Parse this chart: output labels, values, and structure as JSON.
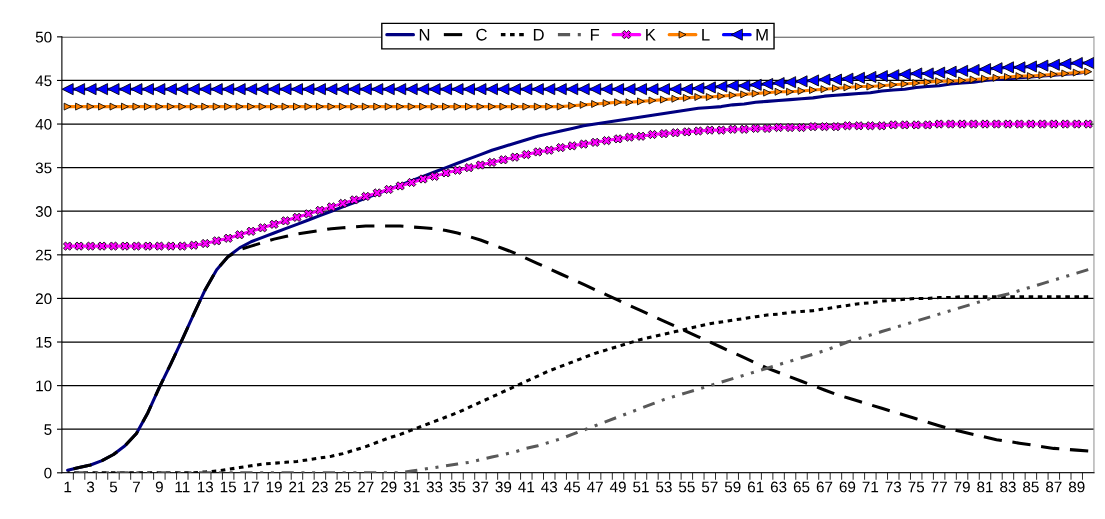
{
  "chart_data": {
    "type": "line",
    "categories": [
      "1",
      null,
      "3",
      null,
      "5",
      null,
      "7",
      null,
      "9",
      null,
      "11",
      null,
      "13",
      null,
      "15",
      null,
      "17",
      null,
      "19",
      null,
      "21",
      null,
      "23",
      null,
      "25",
      null,
      "27",
      null,
      "29",
      null,
      "31",
      null,
      "33",
      null,
      "35",
      null,
      "37",
      null,
      "39",
      null,
      "41",
      null,
      "43",
      null,
      "45",
      null,
      "47",
      null,
      "49",
      null,
      "51",
      null,
      "53",
      null,
      "55",
      null,
      "57",
      null,
      "59",
      null,
      "61",
      null,
      "63",
      null,
      "65",
      null,
      "67",
      null,
      "69",
      null,
      "71",
      null,
      "73",
      null,
      "75",
      null,
      "77",
      null,
      "79",
      null,
      "81",
      null,
      "83",
      null,
      "85",
      null,
      "87",
      null,
      "89",
      null
    ],
    "series": [
      {
        "name": "N",
        "color": "#000080",
        "line_style": "solid",
        "marker": "none",
        "values": [
          0.3,
          0.6,
          0.9,
          1.4,
          2.1,
          3.1,
          4.5,
          6.9,
          9.8,
          12.5,
          15.3,
          18.2,
          21.0,
          23.3,
          24.8,
          25.8,
          26.5,
          27.0,
          27.5,
          28.0,
          28.5,
          29.0,
          29.5,
          30.0,
          30.5,
          31.0,
          31.5,
          32.0,
          32.5,
          33.0,
          33.5,
          34.0,
          34.5,
          35.0,
          35.5,
          36.0,
          36.5,
          37.0,
          37.4,
          37.8,
          38.2,
          38.6,
          38.9,
          39.2,
          39.5,
          39.8,
          40.0,
          40.2,
          40.4,
          40.6,
          40.8,
          41.0,
          41.2,
          41.4,
          41.6,
          41.8,
          41.9,
          42.0,
          42.2,
          42.3,
          42.5,
          42.6,
          42.7,
          42.8,
          42.9,
          43.0,
          43.2,
          43.3,
          43.4,
          43.5,
          43.6,
          43.8,
          43.9,
          44.0,
          44.2,
          44.3,
          44.4,
          44.6,
          44.7,
          44.8,
          45.0,
          45.1,
          45.2,
          45.3,
          45.4,
          45.5,
          45.6,
          45.7,
          45.8,
          46.0
        ]
      },
      {
        "name": "C",
        "color": "#000000",
        "line_style": "dashed",
        "marker": "none",
        "values": [
          0.3,
          0.6,
          0.9,
          1.4,
          2.1,
          3.1,
          4.5,
          6.9,
          9.8,
          12.5,
          15.3,
          18.2,
          21.0,
          23.3,
          24.8,
          25.6,
          26.0,
          26.4,
          26.8,
          27.1,
          27.4,
          27.6,
          27.8,
          28.0,
          28.1,
          28.2,
          28.3,
          28.3,
          28.3,
          28.3,
          28.2,
          28.1,
          28.0,
          27.8,
          27.5,
          27.1,
          26.7,
          26.2,
          25.7,
          25.2,
          24.6,
          24.0,
          23.4,
          22.8,
          22.2,
          21.6,
          21.0,
          20.4,
          19.8,
          19.2,
          18.6,
          18.0,
          17.4,
          16.8,
          16.2,
          15.6,
          15.0,
          14.4,
          13.8,
          13.2,
          12.6,
          12.0,
          11.5,
          11.0,
          10.5,
          10.0,
          9.5,
          9.0,
          8.6,
          8.2,
          7.8,
          7.4,
          7.0,
          6.6,
          6.2,
          5.8,
          5.4,
          5.0,
          4.7,
          4.4,
          4.1,
          3.8,
          3.6,
          3.4,
          3.2,
          3.0,
          2.8,
          2.7,
          2.6,
          2.5
        ]
      },
      {
        "name": "D",
        "color": "#000000",
        "line_style": "dotted",
        "marker": "none",
        "values": [
          0,
          0,
          0,
          0,
          0,
          0,
          0,
          0,
          0,
          0,
          0,
          0,
          0.1,
          0.2,
          0.4,
          0.6,
          0.8,
          1.0,
          1.1,
          1.2,
          1.3,
          1.5,
          1.7,
          1.9,
          2.2,
          2.6,
          3.0,
          3.5,
          4.0,
          4.4,
          4.9,
          5.4,
          5.9,
          6.4,
          6.9,
          7.5,
          8.1,
          8.7,
          9.3,
          9.9,
          10.5,
          11.1,
          11.7,
          12.2,
          12.7,
          13.2,
          13.7,
          14.1,
          14.5,
          14.9,
          15.3,
          15.6,
          15.9,
          16.2,
          16.5,
          16.8,
          17.1,
          17.3,
          17.5,
          17.7,
          17.9,
          18.1,
          18.2,
          18.4,
          18.5,
          18.6,
          18.8,
          19.0,
          19.2,
          19.4,
          19.5,
          19.7,
          19.8,
          19.9,
          20.0,
          20.0,
          20.1,
          20.1,
          20.2,
          20.2,
          20.2,
          20.2,
          20.2,
          20.2,
          20.2,
          20.2,
          20.2,
          20.2,
          20.2,
          20.2
        ]
      },
      {
        "name": "F",
        "color": "#595959",
        "line_style": "dashdot",
        "marker": "none",
        "values": [
          0,
          0,
          0,
          0,
          0,
          0,
          0,
          0,
          0,
          0,
          0,
          0,
          0,
          0,
          0,
          0,
          0,
          0,
          0,
          0,
          0,
          0,
          0,
          0,
          0,
          0,
          0,
          0,
          0,
          0,
          0.2,
          0.4,
          0.6,
          0.8,
          1.0,
          1.2,
          1.5,
          1.8,
          2.1,
          2.4,
          2.8,
          3.1,
          3.5,
          3.9,
          4.4,
          4.9,
          5.4,
          5.9,
          6.4,
          6.9,
          7.4,
          7.9,
          8.4,
          8.8,
          9.2,
          9.6,
          10.0,
          10.4,
          10.8,
          11.2,
          11.6,
          12.0,
          12.4,
          12.8,
          13.2,
          13.6,
          14.0,
          14.5,
          15.0,
          15.4,
          15.8,
          16.2,
          16.6,
          17.0,
          17.4,
          17.8,
          18.2,
          18.6,
          19.0,
          19.4,
          19.8,
          20.2,
          20.5,
          20.9,
          21.3,
          21.7,
          22.1,
          22.5,
          22.9,
          23.3
        ]
      },
      {
        "name": "K",
        "color": "#ff00ff",
        "line_style": "solid",
        "marker": "cross",
        "values": [
          26,
          26,
          26,
          26,
          26,
          26,
          26,
          26,
          26,
          26,
          26.0,
          26.1,
          26.3,
          26.6,
          26.9,
          27.3,
          27.7,
          28.1,
          28.5,
          28.9,
          29.3,
          29.7,
          30.1,
          30.5,
          30.9,
          31.3,
          31.7,
          32.1,
          32.5,
          32.9,
          33.3,
          33.7,
          34.0,
          34.4,
          34.7,
          35.0,
          35.3,
          35.6,
          35.9,
          36.2,
          36.5,
          36.8,
          37.0,
          37.3,
          37.5,
          37.7,
          37.9,
          38.1,
          38.3,
          38.5,
          38.6,
          38.8,
          38.9,
          39.0,
          39.1,
          39.2,
          39.3,
          39.3,
          39.4,
          39.4,
          39.5,
          39.5,
          39.6,
          39.6,
          39.6,
          39.7,
          39.7,
          39.7,
          39.8,
          39.8,
          39.8,
          39.8,
          39.9,
          39.9,
          39.9,
          39.9,
          40,
          40,
          40,
          40,
          40,
          40,
          40,
          40,
          40,
          40,
          40,
          40,
          40,
          40
        ]
      },
      {
        "name": "L",
        "color": "#ff8000",
        "line_style": "solid",
        "marker": "triangle",
        "values": [
          42,
          42,
          42,
          42,
          42,
          42,
          42,
          42,
          42,
          42,
          42,
          42,
          42,
          42,
          42,
          42,
          42,
          42,
          42,
          42,
          42,
          42,
          42,
          42,
          42,
          42,
          42,
          42,
          42,
          42,
          42,
          42,
          42,
          42,
          42,
          42,
          42,
          42,
          42,
          42,
          42,
          42,
          42,
          42,
          42.1,
          42.2,
          42.3,
          42.4,
          42.5,
          42.5,
          42.6,
          42.7,
          42.8,
          42.9,
          43.0,
          43.1,
          43.1,
          43.2,
          43.3,
          43.4,
          43.5,
          43.6,
          43.7,
          43.7,
          43.8,
          43.9,
          44.0,
          44.1,
          44.2,
          44.3,
          44.3,
          44.4,
          44.5,
          44.6,
          44.7,
          44.8,
          44.9,
          44.9,
          45.0,
          45.1,
          45.2,
          45.3,
          45.4,
          45.5,
          45.5,
          45.6,
          45.7,
          45.8,
          45.9,
          46.0
        ]
      },
      {
        "name": "M",
        "color": "#0000ff",
        "line_style": "solid",
        "marker": "triangle",
        "values": [
          44,
          44,
          44,
          44,
          44,
          44,
          44,
          44,
          44,
          44,
          44,
          44,
          44,
          44,
          44,
          44,
          44,
          44,
          44,
          44,
          44,
          44,
          44,
          44,
          44,
          44,
          44,
          44,
          44,
          44,
          44,
          44,
          44,
          44,
          44,
          44,
          44,
          44,
          44,
          44,
          44,
          44,
          44,
          44,
          44,
          44,
          44,
          44,
          44,
          44,
          44,
          44,
          44,
          44,
          44.0,
          44.1,
          44.2,
          44.3,
          44.4,
          44.4,
          44.5,
          44.6,
          44.7,
          44.8,
          44.9,
          45.0,
          45.1,
          45.1,
          45.2,
          45.3,
          45.4,
          45.5,
          45.6,
          45.7,
          45.8,
          45.8,
          45.9,
          46.0,
          46.1,
          46.2,
          46.3,
          46.4,
          46.5,
          46.5,
          46.6,
          46.7,
          46.8,
          46.9,
          47.0,
          47.0
        ]
      }
    ],
    "ylim": [
      0,
      50
    ],
    "yticks": [
      0,
      5,
      10,
      15,
      20,
      25,
      30,
      35,
      40,
      45,
      50
    ],
    "grid": "y",
    "legend": "top"
  }
}
